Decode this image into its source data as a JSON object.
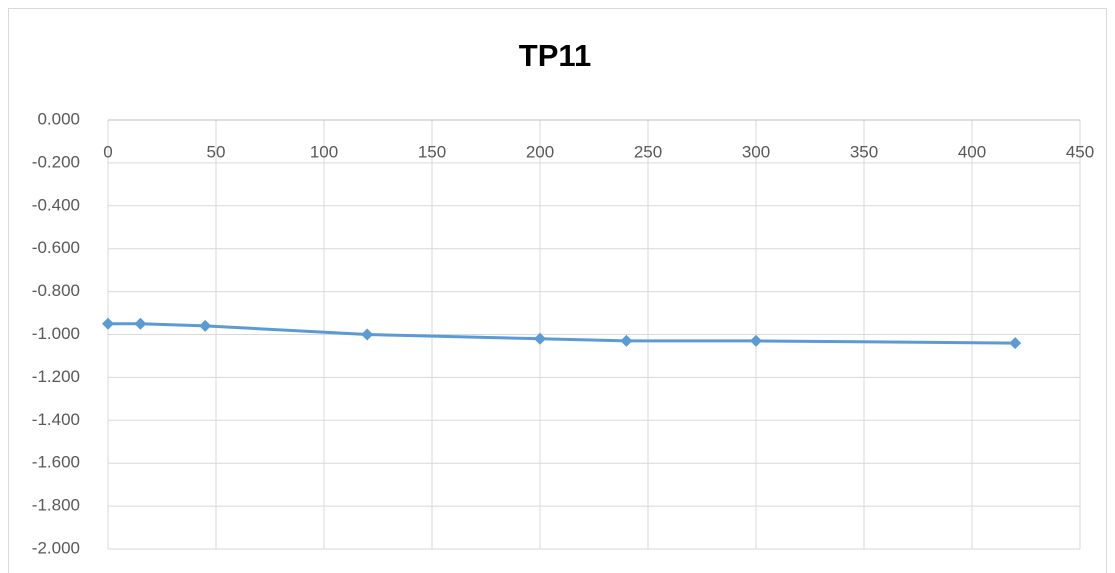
{
  "chart_data": {
    "type": "line",
    "title": "TP11",
    "x": [
      0,
      15,
      45,
      120,
      200,
      240,
      300,
      420
    ],
    "series": [
      {
        "name": "TP11",
        "color": "#5b9bd5",
        "values": [
          -0.95,
          -0.95,
          -0.96,
          -1.0,
          -1.02,
          -1.03,
          -1.03,
          -1.04
        ]
      }
    ],
    "xlim": [
      0,
      450
    ],
    "xticks": [
      0,
      50,
      100,
      150,
      200,
      250,
      300,
      350,
      400,
      450
    ],
    "ylim": [
      -2,
      0
    ],
    "yticks": [
      {
        "value": 0,
        "label": "0.000"
      },
      {
        "value": -0.2,
        "label": "-0.200"
      },
      {
        "value": -0.4,
        "label": "-0.400"
      },
      {
        "value": -0.6,
        "label": "-0.600"
      },
      {
        "value": -0.8,
        "label": "-0.800"
      },
      {
        "value": -1,
        "label": "-1.000"
      },
      {
        "value": -1.2,
        "label": "-1.200"
      },
      {
        "value": -1.4,
        "label": "-1.400"
      },
      {
        "value": -1.6,
        "label": "-1.600"
      },
      {
        "value": -1.8,
        "label": "-1.800"
      },
      {
        "value": -2,
        "label": "-2.000"
      }
    ],
    "grid": true
  }
}
